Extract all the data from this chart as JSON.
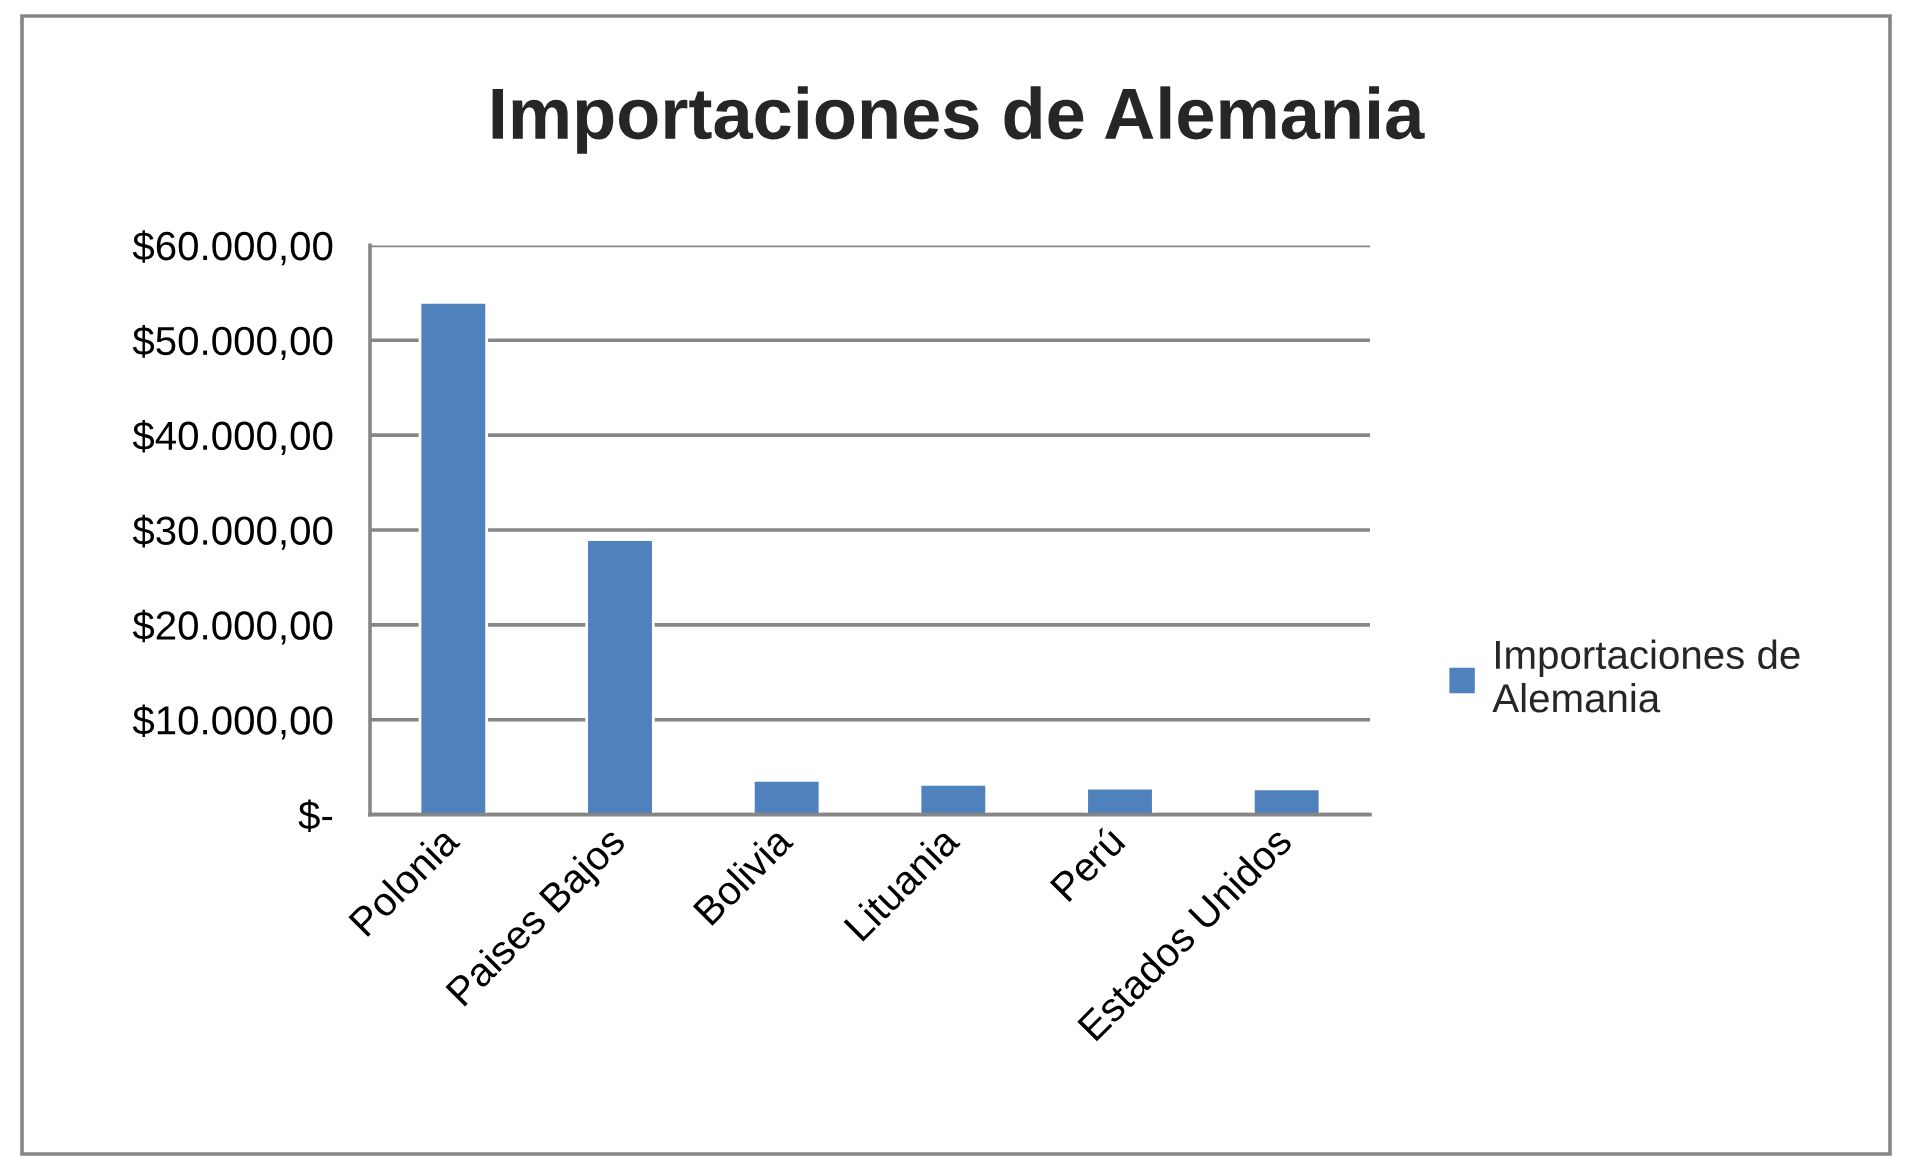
{
  "chart_data": {
    "type": "bar",
    "title": "Importaciones de Alemania",
    "categories": [
      "Polonia",
      "Paises Bajos",
      "Bolivia",
      "Lituania",
      "Perú",
      "Estados Unidos"
    ],
    "series": [
      {
        "name": "Importaciones de Alemania",
        "color": "#4f81bd",
        "values": [
          54000,
          29000,
          3600,
          3200,
          2800,
          2700
        ]
      }
    ],
    "ylim": [
      0,
      60000
    ],
    "yticks": [
      {
        "value": 0,
        "label": "$-"
      },
      {
        "value": 10000,
        "label": "$10.000,00"
      },
      {
        "value": 20000,
        "label": "$20.000,00"
      },
      {
        "value": 30000,
        "label": "$30.000,00"
      },
      {
        "value": 40000,
        "label": "$40.000,00"
      },
      {
        "value": 50000,
        "label": "$50.000,00"
      },
      {
        "value": 60000,
        "label": "$60.000,00"
      }
    ],
    "grid": "y",
    "legend": "right"
  }
}
